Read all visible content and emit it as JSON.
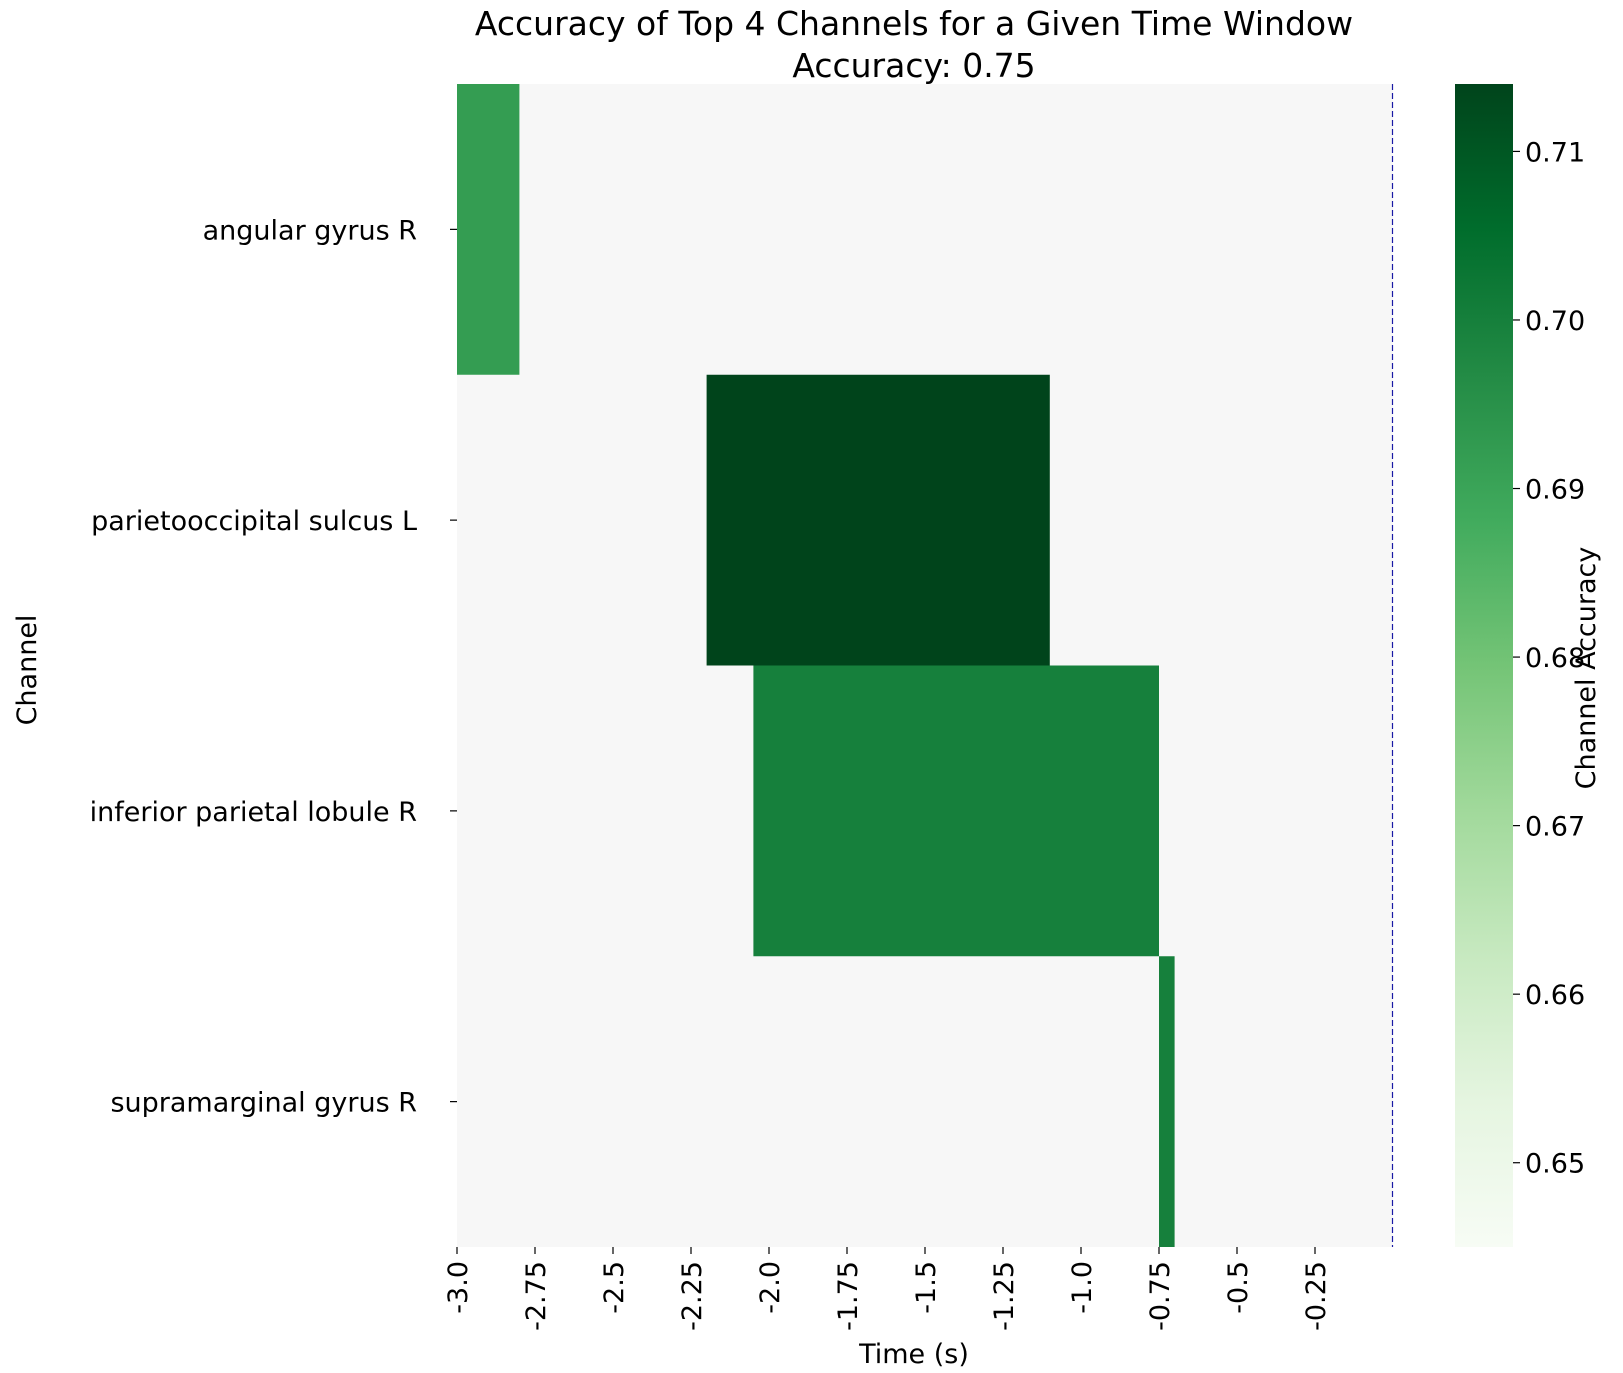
{
  "chart_data": {
    "type": "heatmap",
    "title": "Accuracy of Top 4 Channels for a Given Time Window",
    "subtitle": "Accuracy: 0.75",
    "xlabel": "Time (s)",
    "ylabel": "Channel",
    "xlim": [
      -3.0,
      0.0
    ],
    "x_ticks": [
      -3.0,
      -2.75,
      -2.5,
      -2.25,
      -2.0,
      -1.75,
      -1.5,
      -1.25,
      -1.0,
      -0.75,
      -0.5,
      -0.25
    ],
    "x_tick_labels": [
      "-3.0",
      "-2.75",
      "-2.5",
      "-2.25",
      "-2.0",
      "-1.75",
      "-1.5",
      "-1.25",
      "-1.0",
      "-0.75",
      "-0.5",
      "-0.25"
    ],
    "channels": [
      "angular gyrus R",
      "parietooccipital sulcus L",
      "inferior parietal lobule R",
      "supramarginal gyrus R"
    ],
    "background_color": "#f7f7f7",
    "cells": [
      {
        "channel": "angular gyrus R",
        "t_start": -3.0,
        "t_end": -2.8,
        "value": 0.692
      },
      {
        "channel": "parietooccipital sulcus L",
        "t_start": -2.2,
        "t_end": -1.1,
        "value": 0.714
      },
      {
        "channel": "inferior parietal lobule R",
        "t_start": -2.05,
        "t_end": -0.75,
        "value": 0.7
      },
      {
        "channel": "supramarginal gyrus R",
        "t_start": -0.75,
        "t_end": -0.7,
        "value": 0.7
      }
    ],
    "reference_line": {
      "x": 0.0,
      "style": "dashed",
      "color": "#1a1aa6"
    },
    "colorbar": {
      "label": "Channel Accuracy",
      "vmin": 0.645,
      "vmax": 0.714,
      "ticks": [
        0.65,
        0.66,
        0.67,
        0.68,
        0.69,
        0.7,
        0.71
      ],
      "tick_labels": [
        "0.65",
        "0.66",
        "0.67",
        "0.68",
        "0.69",
        "0.70",
        "0.71"
      ],
      "colormap": "Greens",
      "colormap_stops": [
        "#f7fcf5",
        "#e5f5e0",
        "#c7e9c0",
        "#a1d99b",
        "#74c476",
        "#41ab5d",
        "#238b45",
        "#006d2c",
        "#00441b"
      ]
    }
  }
}
